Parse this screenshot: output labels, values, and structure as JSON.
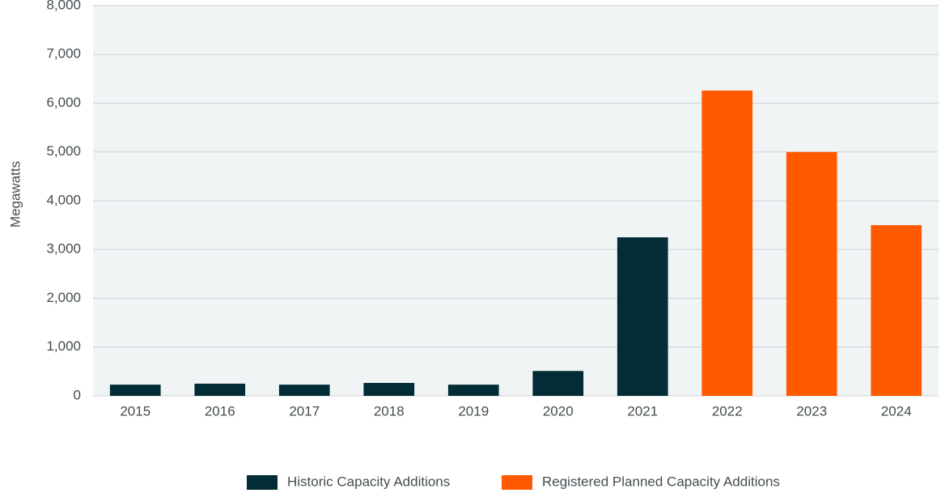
{
  "chart_data": {
    "type": "bar",
    "y_label": "Megawatts",
    "categories": [
      "2015",
      "2016",
      "2017",
      "2018",
      "2019",
      "2020",
      "2021",
      "2022",
      "2023",
      "2024"
    ],
    "series": [
      {
        "name": "Historic Capacity Additions",
        "color": "#022d36",
        "values": [
          230,
          250,
          230,
          265,
          230,
          510,
          3250,
          null,
          null,
          null
        ]
      },
      {
        "name": "Registered Planned Capacity Additions",
        "color": "#ff5a00",
        "values": [
          null,
          null,
          null,
          null,
          null,
          null,
          null,
          6260,
          5000,
          3500
        ]
      }
    ],
    "ylim": [
      0,
      8000
    ],
    "yticks": [
      0,
      {
        "value": 1000,
        "label": "1,000"
      },
      {
        "value": 2000,
        "label": "2,000"
      },
      {
        "value": 3000,
        "label": "3,000"
      },
      {
        "value": 4000,
        "label": "4,000"
      },
      {
        "value": 5000,
        "label": "5,000"
      },
      {
        "value": 6000,
        "label": "6,000"
      },
      {
        "value": 7000,
        "label": "7,000"
      },
      {
        "value": 8000,
        "label": "8,000"
      }
    ],
    "grid": true,
    "legend": "bottom"
  }
}
